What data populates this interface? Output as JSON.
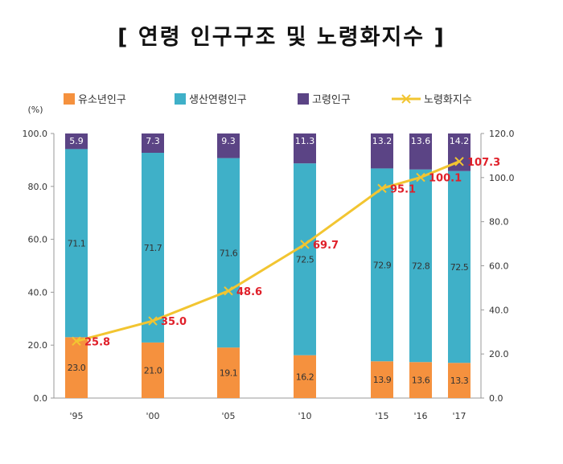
{
  "title": "[ 연령 인구구조 및 노령화지수 ]",
  "chart_data": {
    "type": "bar",
    "stacked": true,
    "categories": [
      "'95",
      "'00",
      "'05",
      "'10",
      "'15",
      "'16",
      "'17"
    ],
    "series": [
      {
        "name": "유소년인구",
        "axis": "left",
        "color": "#f5913e",
        "values": [
          23.0,
          21.0,
          19.1,
          16.2,
          13.9,
          13.6,
          13.3
        ]
      },
      {
        "name": "생산연령인구",
        "axis": "left",
        "color": "#3fb0c8",
        "values": [
          71.1,
          71.7,
          71.6,
          72.5,
          72.9,
          72.8,
          72.5
        ]
      },
      {
        "name": "고령인구",
        "axis": "left",
        "color": "#5b4485",
        "values": [
          5.9,
          7.3,
          9.3,
          11.3,
          13.2,
          13.6,
          14.2
        ]
      },
      {
        "name": "노령화지수",
        "type": "line",
        "axis": "right",
        "color": "#f2c531",
        "values": [
          25.8,
          35.0,
          48.6,
          69.7,
          95.1,
          100.1,
          107.3
        ]
      }
    ],
    "y_unit": "(%)",
    "ylim": [
      0,
      100
    ],
    "y2lim": [
      0,
      120
    ],
    "yticks": [
      "0.0",
      "20.0",
      "40.0",
      "60.0",
      "80.0",
      "100.0"
    ],
    "y2ticks": [
      "0.0",
      "20.0",
      "40.0",
      "60.0",
      "80.0",
      "100.0",
      "120.0"
    ],
    "legend_position": "top",
    "grid": false
  }
}
